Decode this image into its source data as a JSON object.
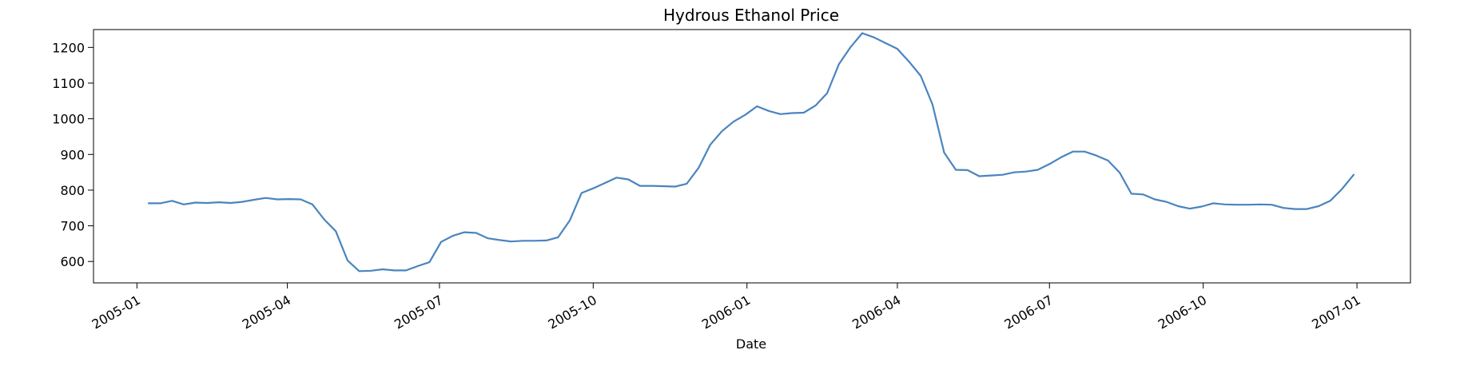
{
  "chart_data": {
    "type": "line",
    "title": "Hydrous Ethanol Price",
    "xlabel": "Date",
    "ylabel": "",
    "xlim": [
      "2004-12-06",
      "2007-02-02"
    ],
    "ylim": [
      540,
      1250
    ],
    "grid": false,
    "legend": "none",
    "line_color": "#4a84be",
    "xticks": [
      "2005-01-01",
      "2005-04-01",
      "2005-07-01",
      "2005-10-01",
      "2006-01-01",
      "2006-04-01",
      "2006-07-01",
      "2006-10-01",
      "2007-01-01"
    ],
    "xtick_labels": [
      "2005-01",
      "2005-04",
      "2005-07",
      "2005-10",
      "2006-01",
      "2006-04",
      "2006-07",
      "2006-10",
      "2007-01"
    ],
    "yticks": [
      600,
      700,
      800,
      900,
      1000,
      1100,
      1200
    ],
    "ytick_labels": [
      "600",
      "700",
      "800",
      "900",
      "1000",
      "1100",
      "1200"
    ],
    "series": [
      {
        "x": [
          "2005-01-08",
          "2005-01-15",
          "2005-01-22",
          "2005-01-29",
          "2005-02-05",
          "2005-02-12",
          "2005-02-19",
          "2005-02-26",
          "2005-03-05",
          "2005-03-12",
          "2005-03-19",
          "2005-03-26",
          "2005-04-02",
          "2005-04-09",
          "2005-04-16",
          "2005-04-23",
          "2005-04-30",
          "2005-05-07",
          "2005-05-14",
          "2005-05-21",
          "2005-05-28",
          "2005-06-04",
          "2005-06-11",
          "2005-06-18",
          "2005-06-25",
          "2005-07-02",
          "2005-07-09",
          "2005-07-16",
          "2005-07-23",
          "2005-07-30",
          "2005-08-06",
          "2005-08-13",
          "2005-08-20",
          "2005-08-27",
          "2005-09-03",
          "2005-09-10",
          "2005-09-17",
          "2005-09-24",
          "2005-10-01",
          "2005-10-08",
          "2005-10-15",
          "2005-10-22",
          "2005-10-29",
          "2005-11-05",
          "2005-11-12",
          "2005-11-19",
          "2005-11-26",
          "2005-12-03",
          "2005-12-10",
          "2005-12-17",
          "2005-12-24",
          "2005-12-31",
          "2006-01-07",
          "2006-01-14",
          "2006-01-21",
          "2006-01-28",
          "2006-02-04",
          "2006-02-11",
          "2006-02-18",
          "2006-02-25",
          "2006-03-04",
          "2006-03-11",
          "2006-03-18",
          "2006-03-25",
          "2006-04-01",
          "2006-04-08",
          "2006-04-15",
          "2006-04-22",
          "2006-04-29",
          "2006-05-06",
          "2006-05-13",
          "2006-05-20",
          "2006-05-27",
          "2006-06-03",
          "2006-06-10",
          "2006-06-17",
          "2006-06-24",
          "2006-07-01",
          "2006-07-08",
          "2006-07-15",
          "2006-07-22",
          "2006-07-29",
          "2006-08-05",
          "2006-08-12",
          "2006-08-19",
          "2006-08-26",
          "2006-09-02",
          "2006-09-09",
          "2006-09-16",
          "2006-09-23",
          "2006-09-30",
          "2006-10-07",
          "2006-10-14",
          "2006-10-21",
          "2006-10-28",
          "2006-11-04",
          "2006-11-11",
          "2006-11-18",
          "2006-11-25",
          "2006-12-02",
          "2006-12-09",
          "2006-12-16",
          "2006-12-23",
          "2006-12-30"
        ],
        "y": [
          763,
          763,
          770,
          760,
          765,
          764,
          766,
          764,
          767,
          773,
          778,
          774,
          775,
          774,
          760,
          718,
          685,
          603,
          573,
          574,
          578,
          575,
          575,
          587,
          598,
          655,
          672,
          682,
          680,
          665,
          660,
          656,
          658,
          658,
          659,
          668,
          715,
          792,
          805,
          820,
          835,
          830,
          812,
          812,
          811,
          810,
          818,
          862,
          927,
          965,
          992,
          1011,
          1035,
          1022,
          1013,
          1016,
          1017,
          1037,
          1072,
          1153,
          1201,
          1240,
          1228,
          1212,
          1196,
          1160,
          1120,
          1040,
          905,
          857,
          856,
          839,
          841,
          843,
          850,
          852,
          857,
          873,
          892,
          908,
          908,
          897,
          883,
          849,
          790,
          788,
          774,
          767,
          755,
          748,
          754,
          763,
          760,
          759,
          759,
          760,
          759,
          750,
          747,
          747,
          755,
          770,
          803,
          843
        ]
      }
    ]
  }
}
